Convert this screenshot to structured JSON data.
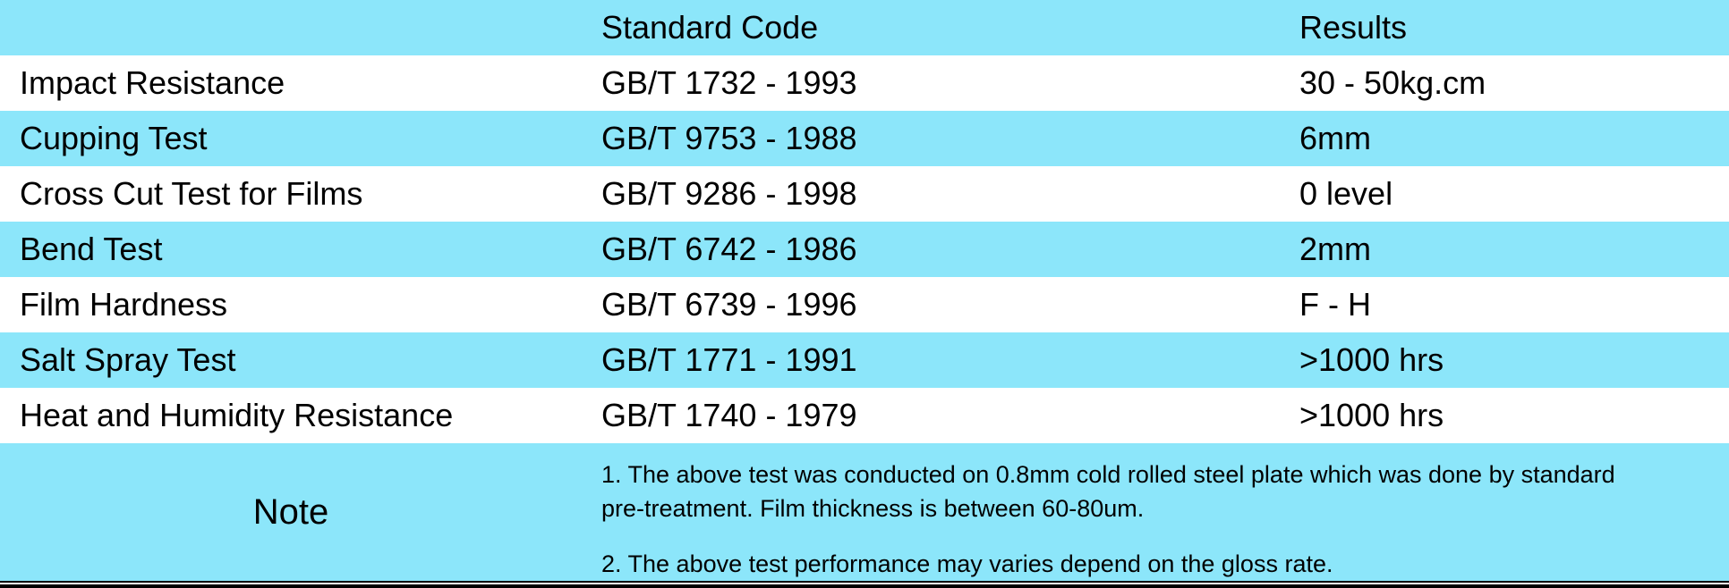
{
  "table": {
    "headers": [
      "",
      "Standard Code",
      "Results"
    ],
    "rows": [
      {
        "test": "Impact Resistance",
        "code": "GB/T 1732 - 1993",
        "result": "30 - 50kg.cm"
      },
      {
        "test": "Cupping Test",
        "code": "GB/T 9753 - 1988",
        "result": "6mm"
      },
      {
        "test": "Cross Cut Test for Films",
        "code": "GB/T 9286 - 1998",
        "result": "0 level"
      },
      {
        "test": "Bend Test",
        "code": "GB/T 6742 - 1986",
        "result": "2mm"
      },
      {
        "test": "Film Hardness",
        "code": "GB/T 6739 - 1996",
        "result": "F - H"
      },
      {
        "test": "Salt Spray Test",
        "code": "GB/T 1771 - 1991",
        "result": ">1000 hrs"
      },
      {
        "test": "Heat and Humidity Resistance",
        "code": "GB/T 1740 - 1979",
        "result": ">1000 hrs"
      }
    ]
  },
  "note": {
    "label": "Note",
    "lines": [
      "1. The above test was conducted on 0.8mm cold rolled steel plate which was done by standard",
      "pre-treatment. Film thickness is between 60-80um.",
      "2. The above test performance may varies depend on the gloss rate."
    ]
  },
  "colors": {
    "band": "#8ce6fa",
    "alt": "#ffffff",
    "text": "#000000"
  }
}
